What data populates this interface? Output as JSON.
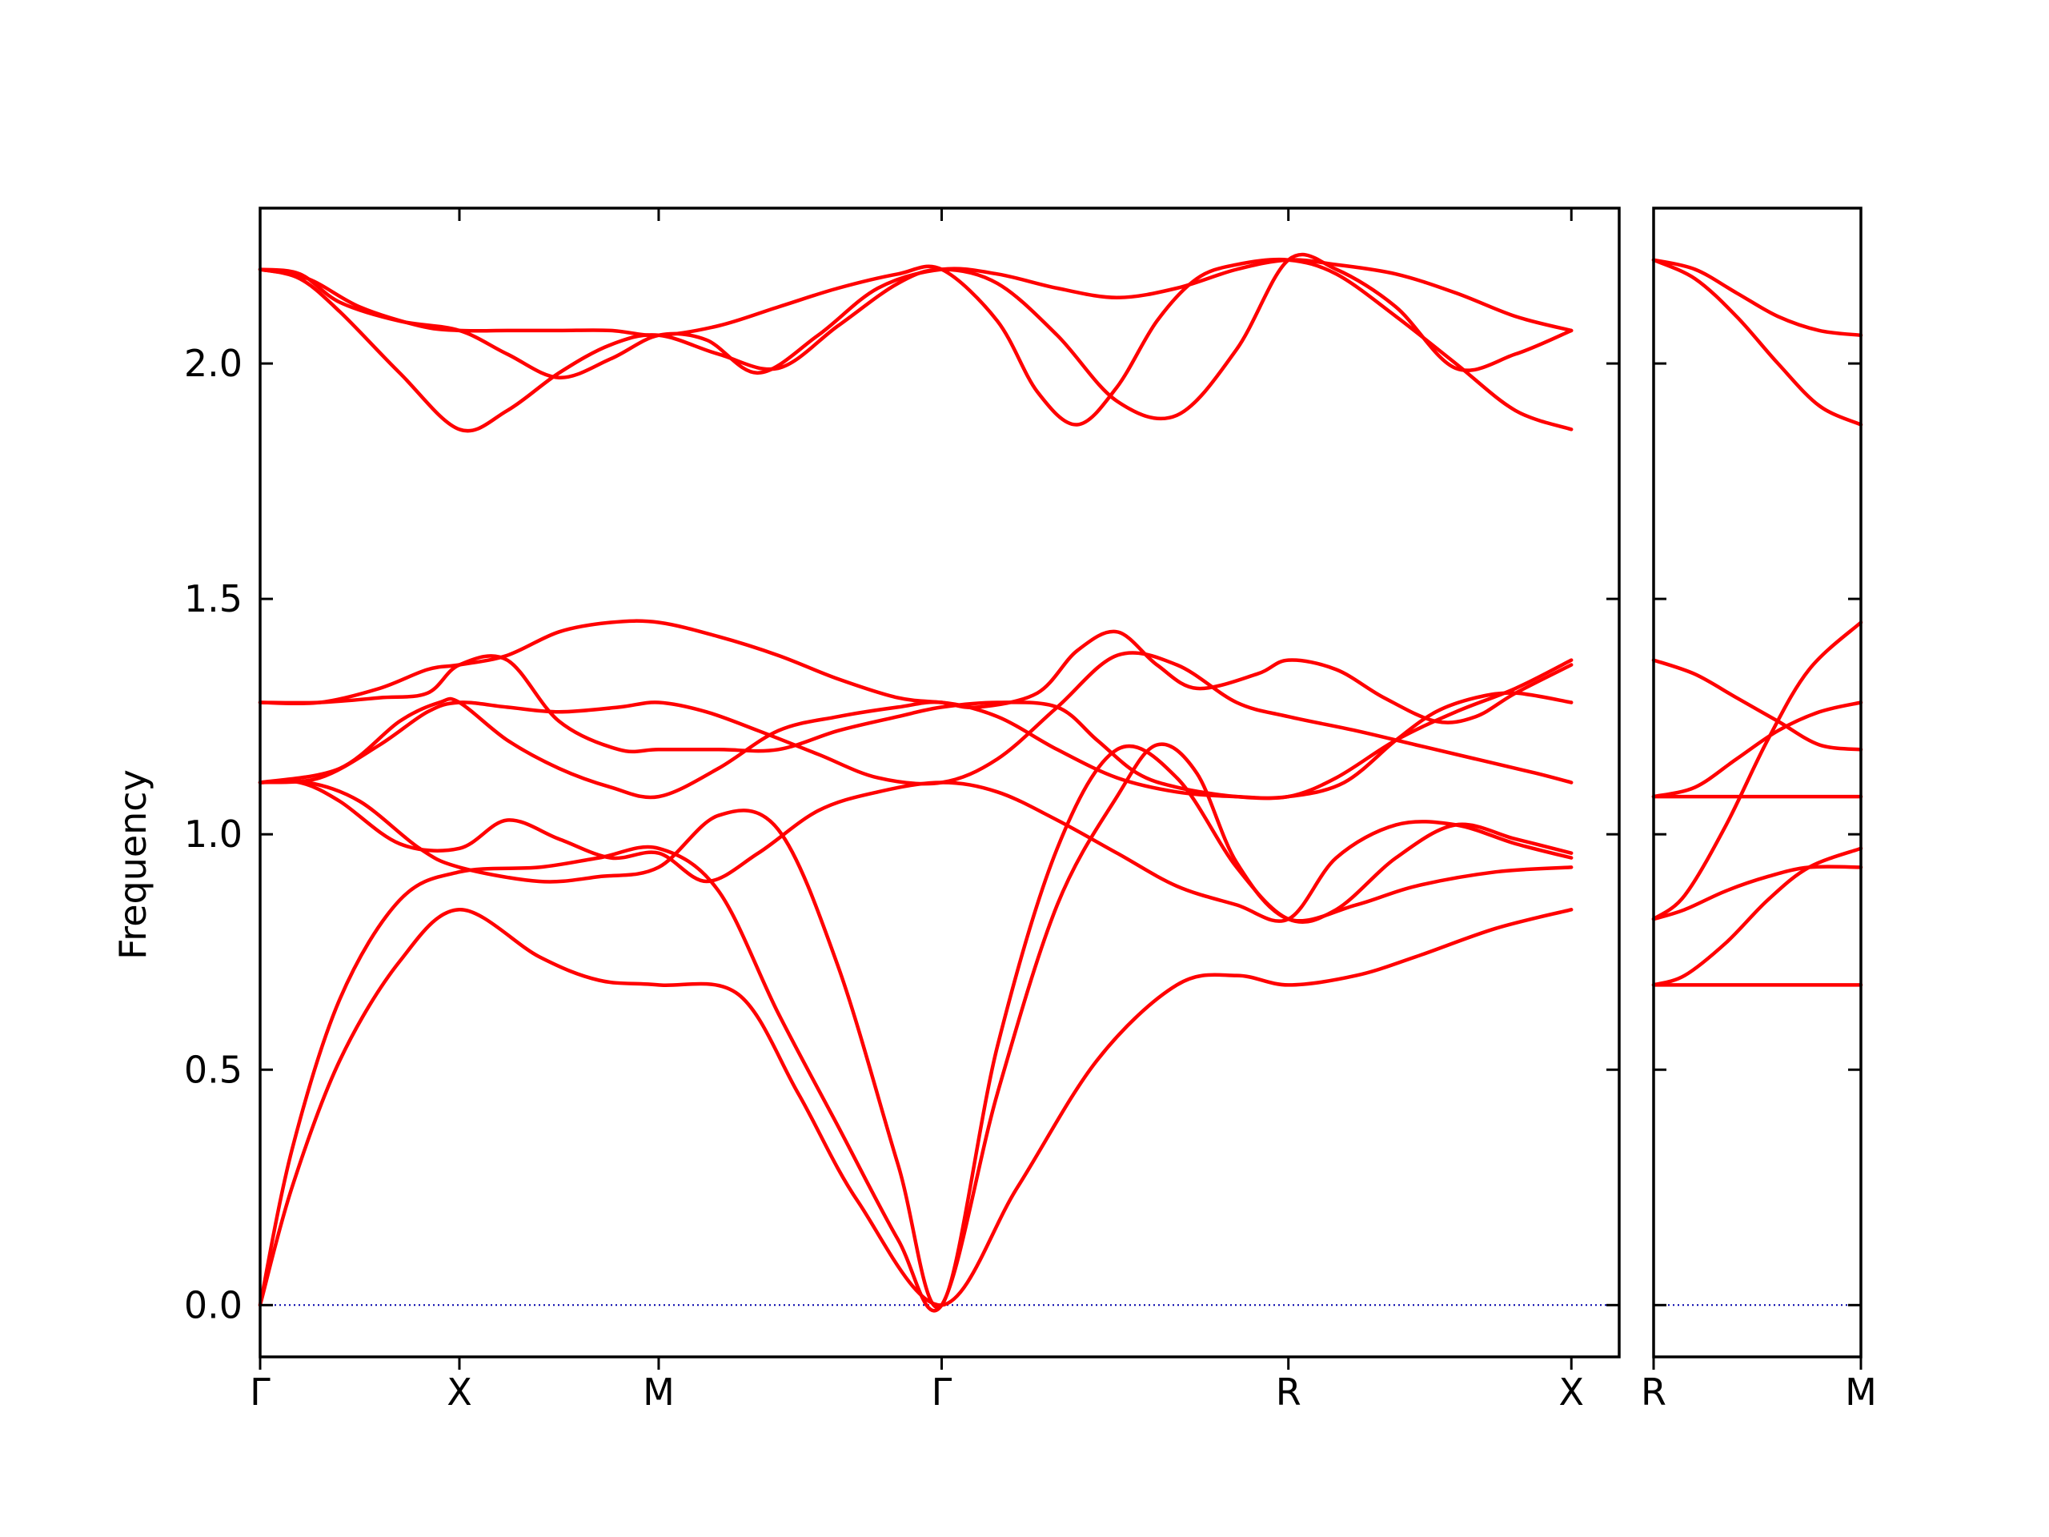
{
  "chart_data": {
    "type": "line",
    "title": "",
    "ylabel": "Frequency",
    "xlabel": "",
    "ylim": [
      -0.11,
      2.33
    ],
    "yticks": [
      0.0,
      0.5,
      1.0,
      1.5,
      2.0
    ],
    "ytick_labels": [
      "0.0",
      "0.5",
      "1.0",
      "1.5",
      "2.0"
    ],
    "grid": false,
    "colors": {
      "band": "#ff0000",
      "zero_line": "#0000aa",
      "axes": "#000000"
    },
    "panels": [
      {
        "id": "main",
        "x_range": [
          0,
          3.41
        ],
        "high_symmetry_points": [
          {
            "label": "Γ",
            "x": 0.0
          },
          {
            "label": "X",
            "x": 0.5
          },
          {
            "label": "M",
            "x": 1.0
          },
          {
            "label": "Γ",
            "x": 1.71
          },
          {
            "label": "R",
            "x": 2.58
          },
          {
            "label": "X",
            "x": 3.29
          }
        ],
        "bands": [
          {
            "x": [
              0,
              0.08,
              0.2,
              0.35,
              0.5,
              0.7,
              0.85,
              1.0,
              1.2,
              1.35,
              1.5,
              1.71,
              1.9,
              2.1,
              2.3,
              2.45,
              2.58,
              2.75,
              2.9,
              3.1,
              3.29
            ],
            "y": [
              0,
              0.25,
              0.52,
              0.73,
              0.84,
              0.74,
              0.69,
              0.68,
              0.66,
              0.45,
              0.22,
              0,
              0.25,
              0.52,
              0.68,
              0.7,
              0.68,
              0.7,
              0.74,
              0.8,
              0.84
            ]
          },
          {
            "x": [
              0,
              0.08,
              0.2,
              0.35,
              0.5,
              0.7,
              0.85,
              1.0,
              1.15,
              1.3,
              1.45,
              1.6,
              1.71,
              1.85,
              2.0,
              2.15,
              2.25,
              2.35,
              2.45,
              2.58,
              2.75,
              2.9,
              3.1,
              3.29
            ],
            "y": [
              0,
              0.33,
              0.65,
              0.86,
              0.92,
              0.93,
              0.95,
              0.97,
              0.88,
              0.62,
              0.38,
              0.14,
              0,
              0.45,
              0.85,
              1.08,
              1.19,
              1.13,
              0.94,
              0.82,
              0.85,
              0.89,
              0.92,
              0.93
            ]
          },
          {
            "x": [
              0,
              0.12,
              0.25,
              0.4,
              0.5,
              0.7,
              0.85,
              1.0,
              1.15,
              1.3,
              1.45,
              1.6,
              1.71,
              1.85,
              2.0,
              2.15,
              2.3,
              2.45,
              2.58,
              2.7,
              2.85,
              3.0,
              3.15,
              3.29
            ],
            "y": [
              1.11,
              1.11,
              1.07,
              0.97,
              0.93,
              0.9,
              0.91,
              0.93,
              1.04,
              1.01,
              0.72,
              0.3,
              0,
              0.55,
              0.97,
              1.18,
              1.12,
              0.93,
              0.82,
              0.84,
              0.95,
              1.02,
              0.99,
              0.96
            ]
          },
          {
            "x": [
              0,
              0.1,
              0.2,
              0.35,
              0.5,
              0.62,
              0.75,
              0.88,
              1.0,
              1.12,
              1.25,
              1.4,
              1.55,
              1.71,
              1.85,
              2.0,
              2.15,
              2.3,
              2.45,
              2.58,
              2.7,
              2.85,
              3.0,
              3.15,
              3.29
            ],
            "y": [
              1.11,
              1.11,
              1.07,
              0.98,
              0.97,
              1.03,
              0.99,
              0.95,
              0.96,
              0.9,
              0.96,
              1.05,
              1.09,
              1.11,
              1.09,
              1.03,
              0.96,
              0.89,
              0.85,
              0.82,
              0.95,
              1.02,
              1.02,
              0.98,
              0.95
            ]
          },
          {
            "x": [
              0,
              0.15,
              0.3,
              0.42,
              0.5,
              0.62,
              0.75,
              0.9,
              1.0,
              1.12,
              1.25,
              1.4,
              1.55,
              1.71,
              1.85,
              2.0,
              2.15,
              2.3,
              2.45,
              2.58,
              2.75,
              2.9,
              3.05,
              3.2,
              3.29
            ],
            "y": [
              1.11,
              1.12,
              1.19,
              1.26,
              1.28,
              1.27,
              1.26,
              1.27,
              1.28,
              1.26,
              1.22,
              1.17,
              1.12,
              1.11,
              1.16,
              1.27,
              1.38,
              1.36,
              1.28,
              1.25,
              1.22,
              1.19,
              1.16,
              1.13,
              1.11
            ]
          },
          {
            "x": [
              0,
              0.2,
              0.35,
              0.45,
              0.5,
              0.62,
              0.75,
              0.88,
              1.0,
              1.15,
              1.3,
              1.45,
              1.6,
              1.71,
              1.85,
              2.0,
              2.15,
              2.3,
              2.45,
              2.58,
              2.7,
              2.85,
              3.0,
              3.15,
              3.29
            ],
            "y": [
              1.11,
              1.14,
              1.24,
              1.28,
              1.28,
              1.2,
              1.14,
              1.1,
              1.08,
              1.14,
              1.22,
              1.25,
              1.27,
              1.28,
              1.25,
              1.18,
              1.12,
              1.09,
              1.08,
              1.08,
              1.12,
              1.2,
              1.26,
              1.31,
              1.37
            ]
          },
          {
            "x": [
              0,
              0.15,
              0.3,
              0.42,
              0.5,
              0.62,
              0.75,
              0.9,
              1.0,
              1.15,
              1.3,
              1.45,
              1.6,
              1.71,
              1.85,
              2.0,
              2.1,
              2.2,
              2.3,
              2.45,
              2.58,
              2.72,
              2.85,
              2.95,
              3.05,
              3.15,
              3.29
            ],
            "y": [
              1.28,
              1.28,
              1.29,
              1.3,
              1.36,
              1.37,
              1.24,
              1.18,
              1.18,
              1.18,
              1.18,
              1.22,
              1.25,
              1.27,
              1.28,
              1.27,
              1.2,
              1.13,
              1.1,
              1.08,
              1.08,
              1.11,
              1.2,
              1.26,
              1.29,
              1.3,
              1.28
            ]
          },
          {
            "x": [
              0,
              0.15,
              0.3,
              0.42,
              0.5,
              0.62,
              0.75,
              0.88,
              1.0,
              1.15,
              1.3,
              1.45,
              1.6,
              1.71,
              1.8,
              1.95,
              2.05,
              2.15,
              2.25,
              2.35,
              2.5,
              2.58,
              2.7,
              2.82,
              2.95,
              3.05,
              3.15,
              3.29
            ],
            "y": [
              1.28,
              1.28,
              1.31,
              1.35,
              1.36,
              1.38,
              1.43,
              1.45,
              1.45,
              1.42,
              1.38,
              1.33,
              1.29,
              1.28,
              1.27,
              1.3,
              1.39,
              1.43,
              1.36,
              1.31,
              1.34,
              1.37,
              1.35,
              1.29,
              1.24,
              1.25,
              1.3,
              1.36
            ]
          },
          {
            "x": [
              0,
              0.1,
              0.2,
              0.35,
              0.5,
              0.62,
              0.75,
              0.88,
              1.0,
              1.12,
              1.25,
              1.4,
              1.55,
              1.71,
              1.85,
              2.0,
              2.15,
              2.3,
              2.45,
              2.58,
              2.7,
              2.85,
              3.0,
              3.15,
              3.29
            ],
            "y": [
              2.2,
              2.19,
              2.13,
              2.09,
              2.07,
              2.02,
              1.97,
              2.01,
              2.06,
              2.05,
              1.98,
              2.06,
              2.16,
              2.2,
              2.19,
              2.16,
              2.14,
              2.16,
              2.2,
              2.22,
              2.21,
              2.19,
              2.15,
              2.1,
              2.07
            ]
          },
          {
            "x": [
              0,
              0.1,
              0.2,
              0.35,
              0.5,
              0.62,
              0.75,
              0.88,
              1.0,
              1.15,
              1.3,
              1.45,
              1.6,
              1.71,
              1.85,
              2.0,
              2.15,
              2.3,
              2.45,
              2.58,
              2.7,
              2.85,
              3.0,
              3.15,
              3.29
            ],
            "y": [
              2.2,
              2.18,
              2.11,
              1.98,
              1.86,
              1.9,
              1.98,
              2.04,
              2.06,
              2.02,
              1.99,
              2.08,
              2.17,
              2.2,
              2.17,
              2.06,
              1.92,
              1.89,
              2.03,
              2.22,
              2.2,
              2.12,
              1.99,
              2.02,
              2.07
            ]
          },
          {
            "x": [
              0,
              0.12,
              0.25,
              0.4,
              0.5,
              0.62,
              0.75,
              0.88,
              1.0,
              1.15,
              1.3,
              1.45,
              1.6,
              1.71,
              1.85,
              1.95,
              2.05,
              2.15,
              2.25,
              2.35,
              2.45,
              2.58,
              2.7,
              2.85,
              3.0,
              3.15,
              3.29
            ],
            "y": [
              2.2,
              2.18,
              2.12,
              2.08,
              2.07,
              2.07,
              2.07,
              2.07,
              2.06,
              2.08,
              2.12,
              2.16,
              2.19,
              2.2,
              2.09,
              1.94,
              1.87,
              1.95,
              2.09,
              2.18,
              2.21,
              2.22,
              2.19,
              2.1,
              2.0,
              1.9,
              1.86
            ]
          }
        ]
      },
      {
        "id": "inset",
        "x_range": [
          0,
          1
        ],
        "high_symmetry_points": [
          {
            "label": "R",
            "x": 0.0
          },
          {
            "label": "M",
            "x": 1.0
          }
        ],
        "bands": [
          {
            "x": [
              0,
              1
            ],
            "y": [
              0.68,
              0.68
            ]
          },
          {
            "x": [
              0,
              0.15,
              0.35,
              0.55,
              0.75,
              1.0
            ],
            "y": [
              0.68,
              0.7,
              0.77,
              0.86,
              0.93,
              0.97
            ]
          },
          {
            "x": [
              0,
              0.15,
              0.35,
              0.55,
              0.75,
              1.0
            ],
            "y": [
              0.82,
              0.84,
              0.88,
              0.91,
              0.93,
              0.93
            ]
          },
          {
            "x": [
              0,
              0.15,
              0.35,
              0.55,
              0.75,
              1.0
            ],
            "y": [
              0.82,
              0.87,
              1.02,
              1.2,
              1.35,
              1.45
            ]
          },
          {
            "x": [
              0,
              1
            ],
            "y": [
              1.08,
              1.08
            ]
          },
          {
            "x": [
              0,
              0.2,
              0.4,
              0.6,
              0.8,
              1.0
            ],
            "y": [
              1.08,
              1.1,
              1.16,
              1.22,
              1.26,
              1.28
            ]
          },
          {
            "x": [
              0,
              0.2,
              0.4,
              0.6,
              0.8,
              1.0
            ],
            "y": [
              1.37,
              1.34,
              1.29,
              1.24,
              1.19,
              1.18
            ]
          },
          {
            "x": [
              0,
              0.2,
              0.4,
              0.6,
              0.8,
              1.0
            ],
            "y": [
              2.22,
              2.2,
              2.15,
              2.1,
              2.07,
              2.06
            ]
          },
          {
            "x": [
              0,
              0.2,
              0.4,
              0.6,
              0.8,
              1.0
            ],
            "y": [
              2.22,
              2.18,
              2.1,
              2.0,
              1.91,
              1.87
            ]
          }
        ]
      }
    ]
  }
}
